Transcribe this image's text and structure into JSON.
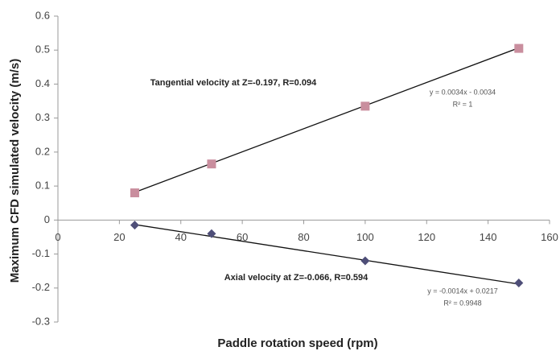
{
  "chart_data": {
    "type": "scatter",
    "x_label": "Paddle rotation speed (rpm)",
    "y_label": "Maximum CFD simulated velocity (m/s)",
    "xlim": [
      0,
      160
    ],
    "xticks": [
      0,
      20,
      40,
      60,
      80,
      100,
      120,
      140,
      160
    ],
    "ylim": [
      -0.3,
      0.6
    ],
    "yticks": [
      0.6,
      0.5,
      0.4,
      0.3,
      0.2,
      0.1,
      0,
      -0.1,
      -0.2,
      -0.3
    ],
    "x": [
      25,
      50,
      100,
      150
    ],
    "series": [
      {
        "name": "Tangential velocity at Z=-0.197, R=0.094",
        "color": "#c98e9e",
        "marker": "square",
        "values": [
          0.08,
          0.165,
          0.335,
          0.505
        ],
        "trendline": {
          "slope": 0.0034,
          "intercept": -0.0034,
          "equation": "y = 0.0034x - 0.0034",
          "r2": "R² = 1"
        }
      },
      {
        "name": "Axial velocity at Z=-0.066, R=0.594",
        "color": "#4e4e78",
        "marker": "diamond",
        "values": [
          -0.015,
          -0.04,
          -0.12,
          -0.185
        ],
        "trendline": {
          "slope": -0.0014,
          "intercept": 0.0217,
          "equation": "y = -0.0014x + 0.0217",
          "r2": "R² = 0.9948"
        }
      }
    ]
  }
}
